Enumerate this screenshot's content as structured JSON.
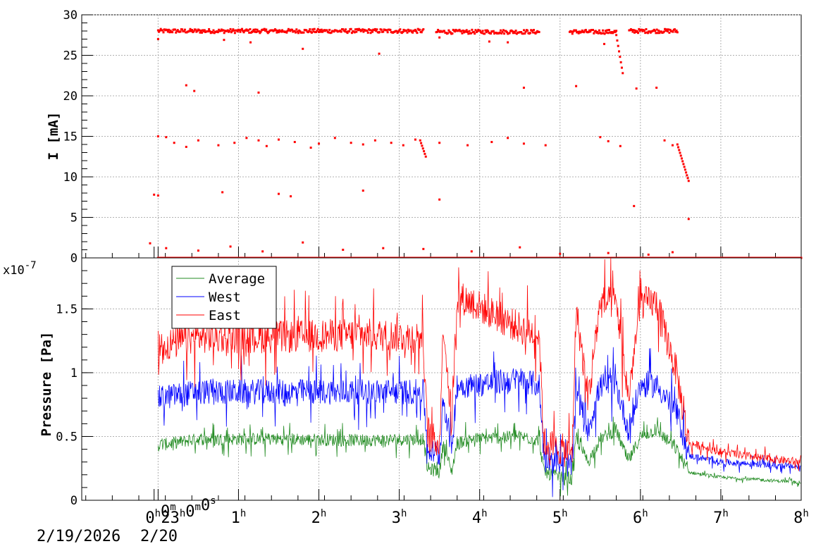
{
  "chart_data": [
    {
      "type": "scatter",
      "ylabel": "I [mA]",
      "ylim": [
        0,
        30
      ],
      "yticks": [
        {
          "v": 0,
          "label": "0"
        },
        {
          "v": 5,
          "label": "5"
        },
        {
          "v": 10,
          "label": "10"
        },
        {
          "v": 15,
          "label": "15"
        },
        {
          "v": 20,
          "label": "20"
        },
        {
          "v": 25,
          "label": "25"
        },
        {
          "v": 30,
          "label": "30"
        }
      ],
      "grid": true,
      "color": "#ff0000",
      "series": [
        {
          "segments": [
            {
              "x": [
                0,
                3.3
              ],
              "y": [
                28,
                28
              ]
            },
            {
              "x": [
                3.46,
                4.74
              ],
              "y": [
                27.9,
                27.9
              ]
            },
            {
              "x": [
                5.12,
                5.7
              ],
              "y": [
                27.9,
                27.9
              ]
            },
            {
              "x": [
                5.7,
                5.78
              ],
              "y": [
                27.5,
                22.8
              ]
            },
            {
              "x": [
                5.86,
                6.46
              ],
              "y": [
                28,
                28
              ]
            },
            {
              "x": [
                3.26,
                3.33
              ],
              "y": [
                14.5,
                12.5
              ]
            },
            {
              "x": [
                6.46,
                6.6
              ],
              "y": [
                14,
                9.5
              ]
            },
            {
              "x": [
                0,
                8.0
              ],
              "y": [
                0,
                0
              ]
            }
          ],
          "points": [
            [
              0.0,
              15.0
            ],
            [
              0.1,
              14.9
            ],
            [
              0.2,
              14.2
            ],
            [
              0.35,
              13.7
            ],
            [
              0.5,
              14.5
            ],
            [
              0.75,
              13.9
            ],
            [
              0.95,
              14.2
            ],
            [
              1.1,
              14.8
            ],
            [
              1.25,
              14.5
            ],
            [
              1.35,
              13.8
            ],
            [
              1.5,
              14.6
            ],
            [
              1.7,
              14.3
            ],
            [
              1.9,
              13.6
            ],
            [
              2.0,
              14.1
            ],
            [
              2.2,
              14.8
            ],
            [
              2.4,
              14.2
            ],
            [
              2.55,
              14.0
            ],
            [
              2.7,
              14.5
            ],
            [
              2.9,
              14.2
            ],
            [
              3.05,
              13.9
            ],
            [
              3.2,
              14.6
            ],
            [
              3.5,
              14.2
            ],
            [
              3.85,
              13.9
            ],
            [
              4.15,
              14.3
            ],
            [
              4.35,
              14.8
            ],
            [
              4.55,
              14.1
            ],
            [
              4.82,
              13.9
            ],
            [
              5.5,
              14.9
            ],
            [
              5.6,
              14.4
            ],
            [
              5.75,
              13.8
            ],
            [
              6.3,
              14.5
            ],
            [
              6.4,
              13.9
            ],
            [
              -0.05,
              7.8
            ],
            [
              0.0,
              7.7
            ],
            [
              0.8,
              8.1
            ],
            [
              1.5,
              7.9
            ],
            [
              1.65,
              7.6
            ],
            [
              2.55,
              8.3
            ],
            [
              3.5,
              7.2
            ],
            [
              0.35,
              21.3
            ],
            [
              0.45,
              20.6
            ],
            [
              1.25,
              20.4
            ],
            [
              4.55,
              21.0
            ],
            [
              5.2,
              21.2
            ],
            [
              5.95,
              20.9
            ],
            [
              6.2,
              21.0
            ],
            [
              1.8,
              25.8
            ],
            [
              2.75,
              25.2
            ],
            [
              0.0,
              27.0
            ],
            [
              0.82,
              26.9
            ],
            [
              1.15,
              26.6
            ],
            [
              3.5,
              27.2
            ],
            [
              4.12,
              26.7
            ],
            [
              4.35,
              26.6
            ],
            [
              5.55,
              26.4
            ],
            [
              5.92,
              6.4
            ],
            [
              6.6,
              4.8
            ],
            [
              -0.1,
              1.8
            ],
            [
              0.1,
              1.2
            ],
            [
              0.5,
              0.9
            ],
            [
              0.9,
              1.4
            ],
            [
              1.3,
              0.8
            ],
            [
              1.8,
              1.9
            ],
            [
              2.3,
              1.0
            ],
            [
              2.8,
              1.2
            ],
            [
              3.3,
              1.1
            ],
            [
              3.9,
              0.8
            ],
            [
              4.5,
              1.3
            ],
            [
              5.0,
              0.5
            ],
            [
              5.6,
              0.6
            ],
            [
              6.1,
              0.4
            ],
            [
              6.4,
              0.7
            ]
          ]
        }
      ]
    },
    {
      "type": "line",
      "ylabel": "Pressure [Pa]",
      "exponent_base": "x10",
      "exponent_power": "-7",
      "ylim": [
        0,
        1.9
      ],
      "yticks": [
        {
          "v": 0,
          "label": "0"
        },
        {
          "v": 0.5,
          "label": "0.5"
        },
        {
          "v": 1,
          "label": "1"
        },
        {
          "v": 1.5,
          "label": "1.5"
        }
      ],
      "grid": true,
      "legend_position": "top-left",
      "series": [
        {
          "name": "Average",
          "color": "#228b22",
          "x": [
            0,
            0.5,
            1.5,
            2.5,
            3.3,
            3.35,
            3.5,
            3.55,
            3.65,
            3.72,
            3.9,
            4.5,
            4.74,
            4.8,
            5.0,
            5.15,
            5.2,
            5.35,
            5.5,
            5.7,
            5.85,
            6.0,
            6.2,
            6.45,
            6.6,
            7.0,
            7.5,
            8.0
          ],
          "y": [
            0.43,
            0.48,
            0.48,
            0.47,
            0.48,
            0.25,
            0.22,
            0.45,
            0.22,
            0.45,
            0.48,
            0.5,
            0.47,
            0.22,
            0.18,
            0.16,
            0.48,
            0.3,
            0.48,
            0.55,
            0.3,
            0.5,
            0.55,
            0.4,
            0.22,
            0.18,
            0.16,
            0.14
          ],
          "noise": 0.05
        },
        {
          "name": "West",
          "color": "#0000ff",
          "x": [
            0,
            0.5,
            1.5,
            2.5,
            3.3,
            3.35,
            3.5,
            3.55,
            3.65,
            3.72,
            3.9,
            4.5,
            4.74,
            4.8,
            5.0,
            5.15,
            5.2,
            5.35,
            5.5,
            5.7,
            5.85,
            6.0,
            6.2,
            6.45,
            6.6,
            7.0,
            7.5,
            8.0
          ],
          "y": [
            0.8,
            0.85,
            0.85,
            0.85,
            0.85,
            0.4,
            0.35,
            0.8,
            0.4,
            0.9,
            0.9,
            0.95,
            0.9,
            0.35,
            0.3,
            0.27,
            0.85,
            0.55,
            0.9,
            0.9,
            0.55,
            0.9,
            0.9,
            0.7,
            0.35,
            0.3,
            0.28,
            0.26
          ],
          "noise": 0.1
        },
        {
          "name": "East",
          "color": "#ff0000",
          "x": [
            0,
            0.5,
            1.5,
            2.5,
            3.3,
            3.35,
            3.5,
            3.55,
            3.65,
            3.72,
            3.9,
            4.5,
            4.74,
            4.8,
            5.0,
            5.15,
            5.2,
            5.35,
            5.5,
            5.7,
            5.85,
            6.0,
            6.2,
            6.45,
            6.6,
            7.0,
            7.5,
            8.0
          ],
          "y": [
            1.2,
            1.28,
            1.28,
            1.3,
            1.28,
            0.5,
            0.45,
            1.4,
            0.6,
            1.6,
            1.55,
            1.35,
            1.3,
            0.45,
            0.4,
            0.37,
            1.5,
            0.8,
            1.55,
            1.55,
            0.8,
            1.55,
            1.55,
            1.0,
            0.45,
            0.38,
            0.33,
            0.3
          ],
          "noise": 0.13
        }
      ]
    }
  ],
  "x_axis": {
    "range": [
      -0.95,
      8.0
    ],
    "ticks": [
      {
        "v": -0.05,
        "main": "23",
        "sup": "h",
        "main2": "0",
        "sup2": "m",
        "main3": "0",
        "sup3": "s"
      },
      {
        "v": 0,
        "main": "0",
        "sup": "h",
        "main2": "0",
        "sup2": "m"
      },
      {
        "v": 1,
        "main": "1",
        "sup": "h"
      },
      {
        "v": 2,
        "main": "2",
        "sup": "h"
      },
      {
        "v": 3,
        "main": "3",
        "sup": "h"
      },
      {
        "v": 4,
        "main": "4",
        "sup": "h"
      },
      {
        "v": 5,
        "main": "5",
        "sup": "h"
      },
      {
        "v": 6,
        "main": "6",
        "sup": "h"
      },
      {
        "v": 7,
        "main": "7",
        "sup": "h"
      },
      {
        "v": 8,
        "main": "8",
        "sup": "h"
      }
    ],
    "date_label_1": "2/19/2026",
    "date_label_2": "2/20"
  }
}
